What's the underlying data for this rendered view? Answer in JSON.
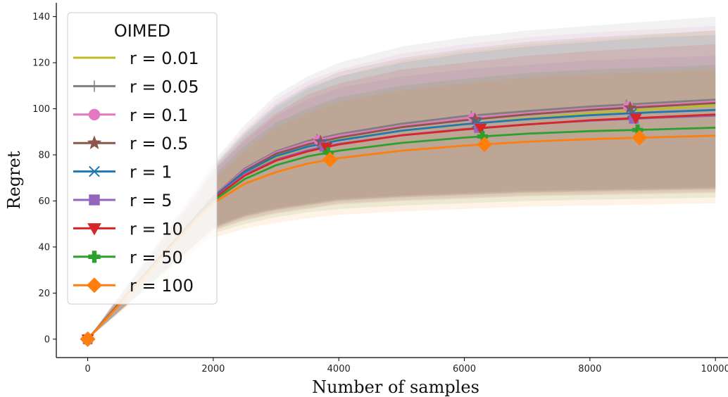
{
  "chart_data": {
    "type": "line",
    "xlabel": "Number of samples",
    "ylabel": "Regret",
    "xlim": [
      -500,
      10200
    ],
    "ylim": [
      -8,
      146
    ],
    "xticks": [
      0,
      2000,
      4000,
      6000,
      8000,
      10000
    ],
    "yticks": [
      0,
      20,
      40,
      60,
      80,
      100,
      120,
      140
    ],
    "grid": false,
    "legend": {
      "title": "OIMED",
      "position": "top-left"
    },
    "x": [
      0,
      250,
      500,
      750,
      1000,
      1250,
      1500,
      1750,
      2000,
      2500,
      3000,
      3500,
      4000,
      5000,
      6000,
      7000,
      8000,
      9000,
      10000
    ],
    "series": [
      {
        "name": "r = 0.01",
        "color": "#bcbd22",
        "marker": "none",
        "values": [
          0,
          7.6,
          15.2,
          22.8,
          30.4,
          38,
          45.6,
          53.2,
          61,
          72,
          79,
          83.5,
          86.5,
          90.5,
          93.2,
          95.8,
          98,
          99.8,
          101.5
        ],
        "band_low": [
          0,
          6,
          12,
          18,
          24,
          30,
          36,
          42,
          48,
          53,
          56,
          58,
          60,
          61.5,
          62.5,
          63.5,
          64,
          64.5,
          65
        ],
        "band_high": [
          0,
          9,
          18,
          27,
          36,
          45,
          54,
          63,
          74,
          88,
          100,
          108,
          114,
          121,
          125,
          128,
          130,
          132,
          134
        ]
      },
      {
        "name": "r = 0.05",
        "color": "#7f7f7f",
        "marker": "plus",
        "values": [
          0,
          7.7,
          15.4,
          23.1,
          30.8,
          38.5,
          46.2,
          53.9,
          62,
          74,
          81.5,
          86,
          89,
          93.5,
          96.8,
          99,
          101,
          102.5,
          104
        ],
        "band_low": [
          0,
          6,
          12,
          18,
          24,
          30,
          36,
          42,
          49,
          54,
          57,
          59,
          61,
          62.5,
          63.5,
          64.5,
          65,
          65.5,
          66
        ],
        "band_high": [
          0,
          9.5,
          19,
          28.5,
          38,
          47.5,
          57,
          66.5,
          77,
          93,
          106,
          114,
          120,
          127,
          131,
          134,
          136,
          138,
          140
        ]
      },
      {
        "name": "r = 0.1",
        "color": "#e377c2",
        "marker": "circle",
        "values": [
          0,
          7.7,
          15.4,
          23.1,
          30.8,
          38.5,
          46.2,
          53.9,
          61.8,
          73.5,
          81,
          85.3,
          88.3,
          92.5,
          95.8,
          98,
          100,
          101.5,
          103
        ],
        "band_low": [
          0,
          6,
          12,
          18,
          24,
          30,
          36,
          42,
          48.5,
          53.5,
          56.5,
          58.5,
          60.5,
          62,
          63,
          64,
          64.5,
          65,
          65.5
        ],
        "band_high": [
          0,
          9.4,
          18.8,
          28.2,
          37.6,
          47,
          56.4,
          65.8,
          76,
          91,
          104,
          112,
          117,
          124,
          128,
          131,
          133,
          134.5,
          136
        ]
      },
      {
        "name": "r = 0.5",
        "color": "#8c564b",
        "marker": "star",
        "values": [
          0,
          7.7,
          15.4,
          23.1,
          30.8,
          38.5,
          46.2,
          53.9,
          61.6,
          73,
          80.5,
          84.5,
          87.5,
          92,
          95,
          97.5,
          99.5,
          101,
          102.5
        ],
        "band_low": [
          0,
          6,
          12,
          18,
          24,
          30,
          36,
          42,
          48.5,
          53.5,
          56.5,
          58.5,
          60.5,
          62,
          63,
          64,
          64.5,
          65,
          65.5
        ],
        "band_high": [
          0,
          9.3,
          18.6,
          27.9,
          37.2,
          46.5,
          55.8,
          65.1,
          75,
          90,
          102,
          110,
          116,
          122,
          126,
          129,
          131,
          132.5,
          134
        ]
      },
      {
        "name": "r = 1",
        "color": "#1f77b4",
        "marker": "x",
        "values": [
          0,
          7.7,
          15.4,
          23.1,
          30.8,
          38.5,
          46.2,
          53.9,
          61.4,
          72.5,
          79.5,
          83.5,
          86.3,
          90.5,
          93.3,
          95.5,
          97.2,
          98.5,
          99.5
        ],
        "band_low": [
          0,
          6,
          12,
          18,
          24,
          30,
          36,
          42,
          48,
          53,
          56,
          58,
          60,
          61.5,
          62.5,
          63.5,
          64,
          64.5,
          65
        ],
        "band_high": [
          0,
          9.2,
          18.4,
          27.6,
          36.8,
          46,
          55.2,
          64.4,
          74.5,
          89,
          101,
          109,
          114,
          120,
          124,
          127,
          129,
          131,
          132
        ]
      },
      {
        "name": "r = 5",
        "color": "#9467bd",
        "marker": "square",
        "values": [
          0,
          7.7,
          15.4,
          23.1,
          30.8,
          38.5,
          46.2,
          53.9,
          61,
          71.5,
          78,
          82,
          84.8,
          88.5,
          91.2,
          93.2,
          94.8,
          96,
          97
        ],
        "band_low": [
          0,
          6,
          12,
          18,
          24,
          30,
          36,
          42,
          47.5,
          52,
          55,
          57,
          59,
          60.5,
          61.5,
          62.5,
          63,
          63.5,
          64
        ],
        "band_high": [
          0,
          9,
          18,
          27,
          36,
          45,
          54,
          63,
          73,
          86,
          97,
          104,
          109,
          114,
          117,
          119,
          121,
          122,
          123
        ]
      },
      {
        "name": "r = 10",
        "color": "#d62728",
        "marker": "triangle-down",
        "values": [
          0,
          7.7,
          15.4,
          23.1,
          30.8,
          38.5,
          46.2,
          53.9,
          60.8,
          71,
          77.5,
          81.5,
          84.5,
          88.5,
          91,
          93.2,
          95,
          96.3,
          97.5
        ],
        "band_low": [
          0,
          6,
          12,
          18,
          24,
          30,
          36,
          42,
          47,
          51.5,
          54.5,
          56.5,
          58.5,
          60,
          61,
          62,
          62.5,
          63,
          63.5
        ],
        "band_high": [
          0,
          9.1,
          18.2,
          27.3,
          36.4,
          45.5,
          54.6,
          63.7,
          73,
          87,
          98,
          106,
          111,
          117,
          120,
          123,
          125,
          126.5,
          128
        ]
      },
      {
        "name": "r = 50",
        "color": "#2ca02c",
        "marker": "plus-filled",
        "values": [
          0,
          7.6,
          15.2,
          22.8,
          30.4,
          38,
          45.6,
          53.2,
          60,
          69.5,
          75.5,
          79.3,
          81.8,
          85.2,
          87.5,
          89.2,
          90.3,
          91,
          91.8
        ],
        "band_low": [
          0,
          5.8,
          11.6,
          17.4,
          23.2,
          29,
          34.8,
          40.6,
          46,
          50,
          53,
          55,
          56.5,
          58,
          59,
          60,
          60.5,
          61,
          61.5
        ],
        "band_high": [
          0,
          8.8,
          17.6,
          26.4,
          35.2,
          44,
          52.8,
          61.6,
          71,
          84,
          94,
          100,
          105,
          110,
          113,
          115.5,
          117,
          118,
          119
        ]
      },
      {
        "name": "r = 100",
        "color": "#ff7f0e",
        "marker": "diamond",
        "values": [
          0,
          7.5,
          15,
          22.5,
          30,
          37.5,
          45,
          52.5,
          59,
          67.5,
          72.5,
          76.2,
          78.6,
          81.8,
          84,
          85.7,
          86.8,
          87.6,
          88.3
        ],
        "band_low": [
          0,
          5.6,
          11.2,
          16.8,
          22.4,
          28,
          33.6,
          39.2,
          44,
          48,
          50.5,
          52.5,
          54,
          55.5,
          56.5,
          57.5,
          58,
          58.5,
          59
        ],
        "band_high": [
          0,
          8.6,
          17.2,
          25.8,
          34.4,
          43,
          51.6,
          60.2,
          69,
          82,
          92,
          98,
          103,
          108,
          111,
          113.5,
          115,
          116,
          117
        ]
      }
    ]
  }
}
